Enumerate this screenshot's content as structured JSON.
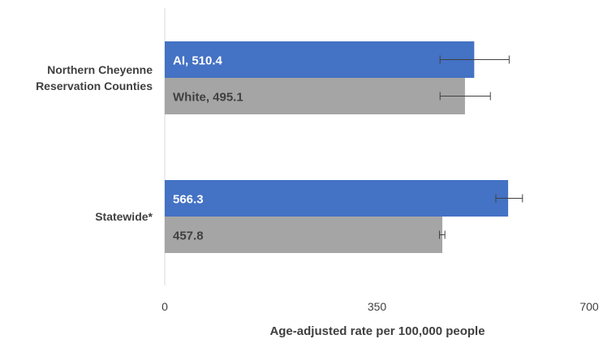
{
  "chart_data": {
    "type": "bar",
    "orientation": "horizontal",
    "title": "",
    "xlabel": "Age-adjusted rate per 100,000 people",
    "ylabel": "",
    "xlim": [
      0,
      700
    ],
    "x_ticks": [
      "0",
      "350",
      "700"
    ],
    "grid": false,
    "legend": "none",
    "categories": [
      "Northern Cheyenne Reservation Counties",
      "Statewide*"
    ],
    "category_lines": [
      [
        "Northern Cheyenne",
        "Reservation Counties"
      ],
      [
        "Statewide*"
      ]
    ],
    "series": [
      {
        "color": "#4472C4",
        "label_color": "#ffffff",
        "values": [
          510.4,
          566.3
        ],
        "error_low": [
          454,
          546
        ],
        "error_high": [
          568,
          590
        ],
        "labels": [
          "AI, 510.4",
          "566.3"
        ]
      },
      {
        "color": "#A5A5A5",
        "label_color": "#404040",
        "values": [
          495.1,
          457.8
        ],
        "error_low": [
          454,
          453
        ],
        "error_high": [
          537,
          462
        ],
        "labels": [
          "White, 495.1",
          "457.8"
        ]
      }
    ]
  }
}
